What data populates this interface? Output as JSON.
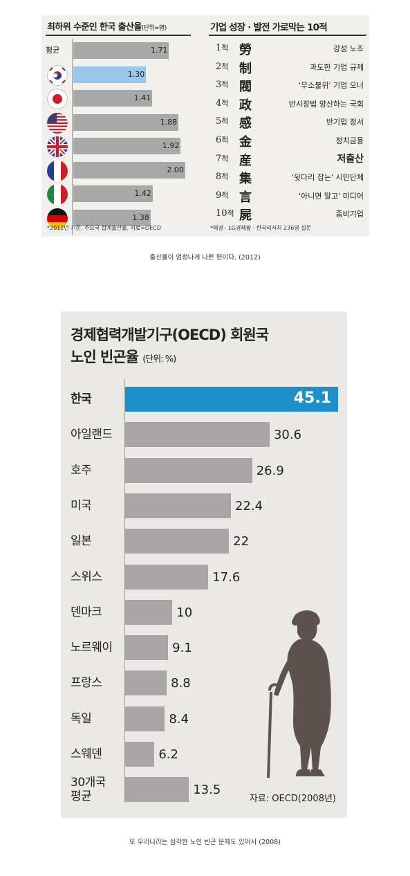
{
  "chart_data": [
    {
      "type": "bar",
      "orientation": "horizontal",
      "title": "최하위 수준인 한국 출산율",
      "unit": "(단위=명)",
      "categories": [
        "평균",
        "한국",
        "일본",
        "미국",
        "영국",
        "프랑스",
        "이탈리아",
        "독일"
      ],
      "category_labels": [
        "평균",
        "",
        "",
        "",
        "",
        "",
        "",
        ""
      ],
      "icons": [
        "",
        "korea-flag-icon",
        "japan-flag-icon",
        "usa-flag-icon",
        "uk-flag-icon",
        "france-flag-icon",
        "italy-flag-icon",
        "germany-flag-icon"
      ],
      "values": [
        1.71,
        1.3,
        1.41,
        1.88,
        1.92,
        2.0,
        1.42,
        1.38
      ],
      "value_labels": [
        "1.71",
        "1.30",
        "1.41",
        "1.88",
        "1.92",
        "2.00",
        "1.42",
        "1.38"
      ],
      "highlight_index": 1,
      "colors": {
        "bar": "#a8a8a8",
        "highlight": "#9cc7e9"
      },
      "note": "*2012년 기준, 주요국 합계출산율, 자료=OECD"
    },
    {
      "type": "table",
      "title": "기업 성장 · 발전 가로막는 10적",
      "rows": [
        {
          "rank": "1",
          "suffix": "적",
          "char": "勞",
          "desc": "강성 노조",
          "bold": false
        },
        {
          "rank": "2",
          "suffix": "적",
          "char": "制",
          "desc": "과도한 기업 규제",
          "bold": false
        },
        {
          "rank": "3",
          "suffix": "적",
          "char": "閥",
          "desc": "'무소불위' 기업 오너",
          "bold": false
        },
        {
          "rank": "4",
          "suffix": "적",
          "char": "政",
          "desc": "반시장법 양산하는 국회",
          "bold": false
        },
        {
          "rank": "5",
          "suffix": "적",
          "char": "感",
          "desc": "반기업 정서",
          "bold": false
        },
        {
          "rank": "6",
          "suffix": "적",
          "char": "金",
          "desc": "정치금융",
          "bold": false
        },
        {
          "rank": "7",
          "suffix": "적",
          "char": "産",
          "desc": "저출산",
          "bold": true
        },
        {
          "rank": "8",
          "suffix": "적",
          "char": "集",
          "desc": "'뒷다리 잡는' 시민단체",
          "bold": false
        },
        {
          "rank": "9",
          "suffix": "적",
          "char": "言",
          "desc": "'아니면 말고' 미디어",
          "bold": false
        },
        {
          "rank": "10",
          "suffix": "적",
          "char": "屍",
          "desc": "좀비기업",
          "bold": false
        }
      ],
      "note": "*매경 · LG경제팦 · 한국리서치 236명 설문"
    },
    {
      "type": "bar",
      "orientation": "horizontal",
      "title_line1": "경제협력개발기구(OECD) 회원국",
      "title_line2": "노인 빈곤율",
      "unit": "(단위: %)",
      "categories": [
        "한국",
        "아일랜드",
        "호주",
        "미국",
        "일본",
        "스위스",
        "덴마크",
        "노르웨이",
        "프랑스",
        "독일",
        "스웨덴",
        "30개국\n평균"
      ],
      "values": [
        45.1,
        30.6,
        26.9,
        22.4,
        22,
        17.6,
        10,
        9.1,
        8.8,
        8.4,
        6.2,
        13.5
      ],
      "value_labels": [
        "45.1",
        "30.6",
        "26.9",
        "22.4",
        "22",
        "17.6",
        "10",
        "9.1",
        "8.8",
        "8.4",
        "6.2",
        "13.5"
      ],
      "highlight_index": 0,
      "colors": {
        "bar": "#a7a5a5",
        "highlight": "#1d8fc9",
        "background": "#ebe9e5",
        "silhouette": "#5e5250"
      },
      "source": "자료: OECD(2008년)",
      "icon": "elderly-man-with-cane-icon"
    }
  ],
  "captions": {
    "first": "출산율이 엄청나게 나쁜 편이다. (2012)",
    "second": "또 우리나라는 심각한 노인 빈곤 문제도 있어서 (2008)"
  }
}
